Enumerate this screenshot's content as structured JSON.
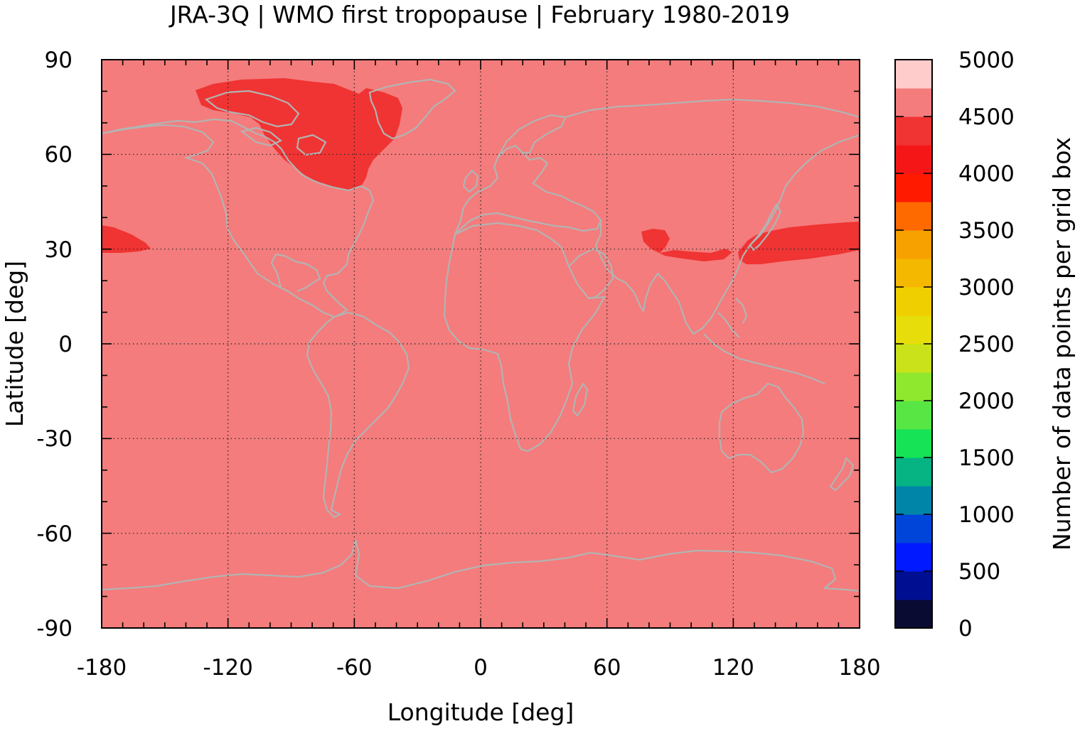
{
  "title": "JRA-3Q | WMO first tropopause | February 1980-2019",
  "axes": {
    "xlabel": "Longitude [deg]",
    "ylabel": "Latitude [deg]",
    "xlim": [
      -180,
      180
    ],
    "ylim": [
      -90,
      90
    ],
    "xticks": [
      "-180",
      "-120",
      "-60",
      "0",
      "60",
      "120",
      "180"
    ],
    "yticks": [
      "90",
      "60",
      "30",
      "0",
      "-30",
      "-60",
      "-90"
    ],
    "grid": true
  },
  "map": {
    "background_value_range": [
      4500,
      4750
    ],
    "background_color": "#f47c7c",
    "coastline_color": "#b3b3b3",
    "regions": [
      {
        "name": "north-america-arctic",
        "color": "#ef3433",
        "value_range": [
          4250,
          4500
        ]
      },
      {
        "name": "pacific-dateline-west",
        "color": "#ef3433",
        "value_range": [
          4250,
          4500
        ]
      },
      {
        "name": "tibet-himalaya",
        "color": "#ef3433",
        "value_range": [
          4250,
          4500
        ]
      },
      {
        "name": "japan-north-pacific",
        "color": "#ef3433",
        "value_range": [
          4250,
          4500
        ]
      }
    ]
  },
  "colorbar": {
    "label": "Number of data points per grid box",
    "min": 0,
    "max": 5000,
    "ticks": [
      "0",
      "500",
      "1000",
      "1500",
      "2000",
      "2500",
      "3000",
      "3500",
      "4000",
      "4500",
      "5000"
    ],
    "colors": [
      "#0a0b33",
      "#000e91",
      "#0019ff",
      "#0045d9",
      "#0084a8",
      "#06b383",
      "#17e356",
      "#58e644",
      "#8fe82e",
      "#c9e21a",
      "#e6dd0a",
      "#f0cf00",
      "#f4b800",
      "#f7a100",
      "#ff6a00",
      "#ff1a00",
      "#f51717",
      "#ef3433",
      "#f47c7c",
      "#ffcccc"
    ]
  }
}
